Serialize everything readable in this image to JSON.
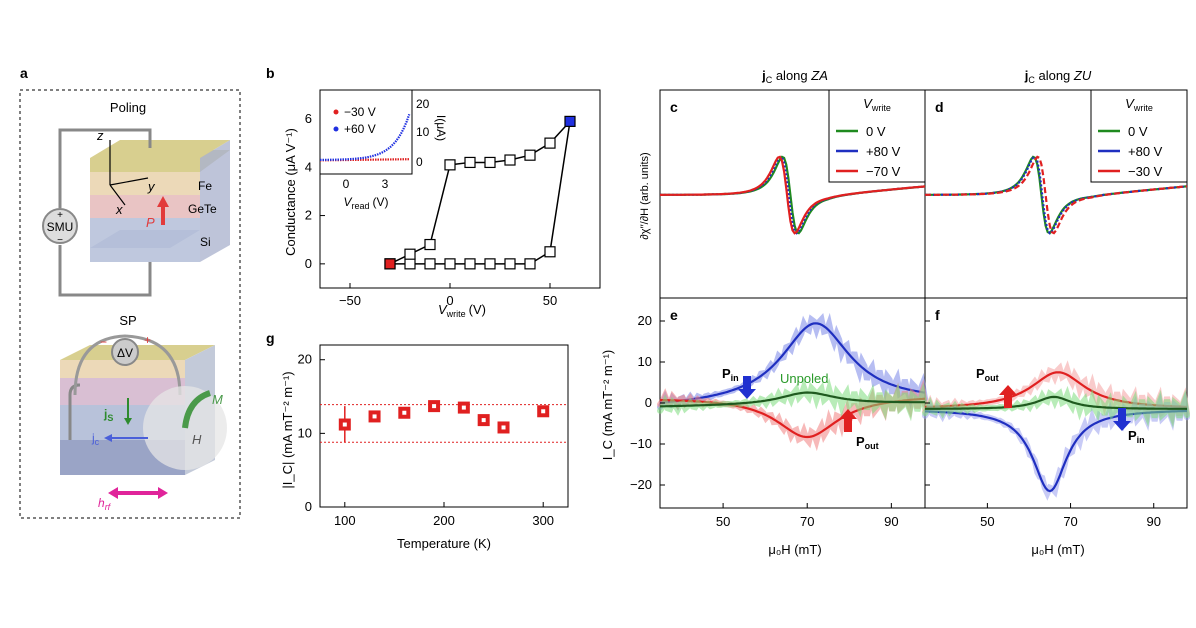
{
  "panel_labels": {
    "a": "a",
    "b": "b",
    "c": "c",
    "d": "d",
    "e": "e",
    "f": "f",
    "g": "g"
  },
  "panel_a": {
    "poling_title": "Poling",
    "sp_title": "SP",
    "axis_z": "z",
    "axis_y": "y",
    "axis_x": "x",
    "layer_fe": "Fe",
    "layer_gete": "GeTe",
    "layer_si": "Si",
    "smu": "SMU",
    "plus": "+",
    "minus": "−",
    "polarization": "P",
    "delta_v": "ΔV",
    "magnetization": "M",
    "field_h": "H",
    "js": "j",
    "js_sub": "S",
    "jc": "j",
    "jc_sub": "c",
    "hrf": "h",
    "hrf_sub": "rf",
    "colors": {
      "fe": "#d8cf8f",
      "gete": "#e9c4c4",
      "si": "#b8c2da",
      "arrow_p": "#e23b3b",
      "jc": "#4a5fd9",
      "js": "#2e8b2e",
      "hrf": "#e0249a",
      "m": "#4a9a4a"
    }
  },
  "panel_b": {
    "ylabel": "Conductance (μA V⁻¹)",
    "xlabel_main": "V",
    "xlabel_sub": "write",
    "xlabel_unit": "(V)",
    "xticks": [
      "−50",
      "0",
      "50"
    ],
    "yticks": [
      "0",
      "2",
      "4",
      "6"
    ],
    "inset": {
      "legend": [
        {
          "label": "−30 V",
          "color": "#e02020"
        },
        {
          "label": "+60 V",
          "color": "#2030e0"
        }
      ],
      "xticks": [
        "0",
        "3"
      ],
      "yticks": [
        "0",
        "10",
        "20"
      ],
      "xlabel_main": "V",
      "xlabel_sub": "read",
      "xlabel_unit": "(V)",
      "ylabel": "I(μA)"
    }
  },
  "panel_g": {
    "ylabel": "|I_C| (mA mT⁻² m⁻¹)",
    "xlabel": "Temperature (K)",
    "xticks": [
      "100",
      "200",
      "300"
    ],
    "yticks": [
      "0",
      "10",
      "20"
    ]
  },
  "column_titles": {
    "za_prefix": "j",
    "za_sub": "C",
    "za_text": " along ",
    "za_em": "ZA",
    "zu_prefix": "j",
    "zu_sub": "C",
    "zu_text": " along ",
    "zu_em": "ZU"
  },
  "panel_c": {
    "legend_title_main": "V",
    "legend_title_sub": "write",
    "legend": [
      {
        "label": "0 V",
        "color": "#1f8a1f"
      },
      {
        "label": "+80 V",
        "color": "#1f2fc0"
      },
      {
        "label": "−70 V",
        "color": "#e02020"
      }
    ]
  },
  "panel_d": {
    "legend_title_main": "V",
    "legend_title_sub": "write",
    "legend": [
      {
        "label": "0 V",
        "color": "#1f8a1f"
      },
      {
        "label": "+80 V",
        "color": "#1f2fc0"
      },
      {
        "label": "−30 V",
        "color": "#e02020"
      }
    ]
  },
  "upper_ylabel": "∂χ′′/∂H (arb. units)",
  "lower_ylabel": "I_C (mA mT⁻² m⁻¹)",
  "lower_yticks": [
    "20",
    "10",
    "0",
    "−10",
    "−20"
  ],
  "bottom_xticks": [
    "50",
    "70",
    "90"
  ],
  "bottom_xlabel": "μ₀H (mT)",
  "panel_e": {
    "p_in": "P",
    "p_in_sub": "in",
    "unpoled": "Unpoled",
    "p_out": "P",
    "p_out_sub": "out"
  },
  "panel_f": {
    "p_out": "P",
    "p_out_sub": "out",
    "p_in": "P",
    "p_in_sub": "in"
  },
  "chart_data": [
    {
      "type": "line",
      "panel": "b",
      "xlabel": "V_write (V)",
      "ylabel": "Conductance (μA V⁻¹)",
      "xlim": [
        -65,
        75
      ],
      "ylim": [
        -1,
        7.2
      ],
      "series": [
        {
          "name": "loop",
          "x": [
            -30,
            -20,
            -10,
            0,
            10,
            20,
            30,
            40,
            50,
            60,
            50,
            40,
            30,
            20,
            10,
            0,
            -10,
            -20,
            -30
          ],
          "y": [
            0,
            0,
            0,
            0,
            0,
            0,
            0,
            0,
            0.5,
            5.9,
            5.0,
            4.5,
            4.3,
            4.2,
            4.2,
            4.1,
            0.8,
            0.4,
            0
          ]
        }
      ]
    },
    {
      "type": "scatter",
      "panel": "g",
      "xlabel": "Temperature (K)",
      "ylabel": "|I_C| (mA mT⁻² m⁻¹)",
      "xlim": [
        75,
        325
      ],
      "ylim": [
        0,
        22
      ],
      "x": [
        100,
        130,
        160,
        190,
        220,
        240,
        260,
        300
      ],
      "y": [
        11.2,
        12.3,
        12.8,
        13.7,
        13.5,
        11.8,
        10.8,
        13.0
      ],
      "band": [
        8.8,
        13.9
      ]
    }
  ]
}
